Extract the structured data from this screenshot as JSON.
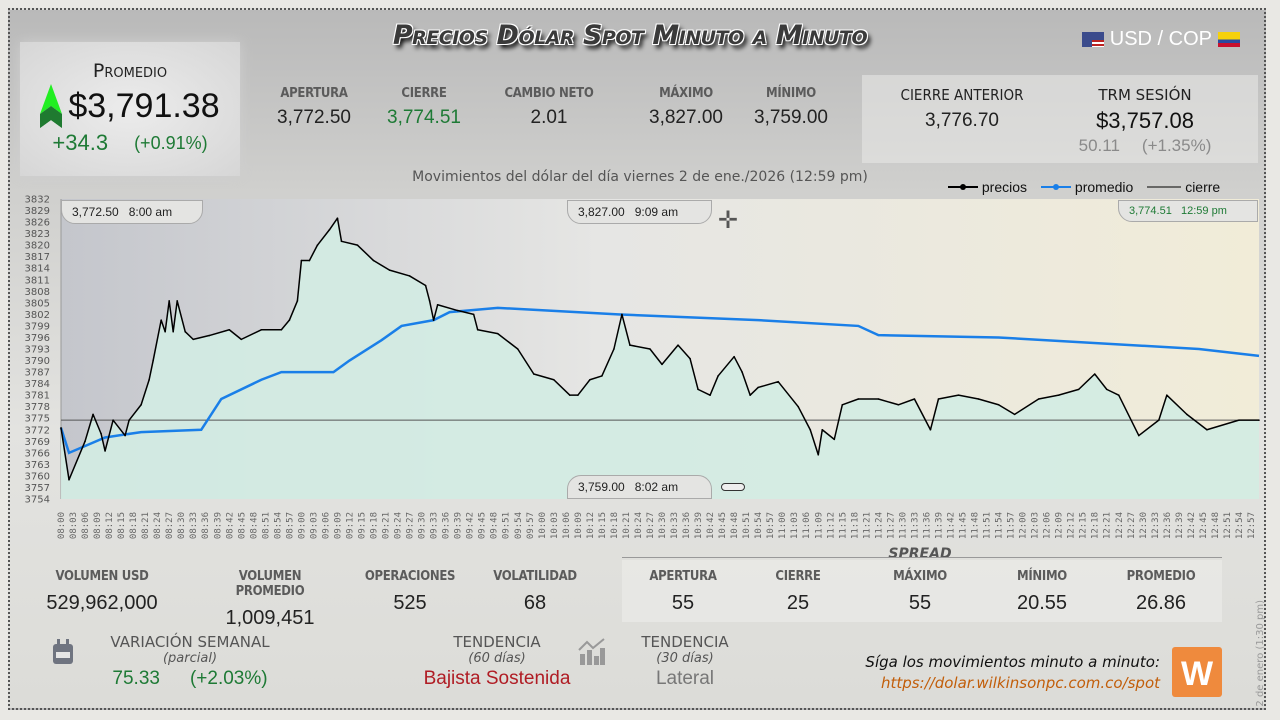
{
  "header": {
    "title": "Precios Dólar Spot Minuto a Minuto",
    "pair": "USD / COP",
    "flag_left": "us-flag-icon",
    "flag_right": "colombia-flag-icon"
  },
  "promedio": {
    "label": "Promedio",
    "value": "$3,791.38",
    "change": "+34.3",
    "change_pct": "(+0.91%)",
    "trend_icon": "arrow-up-icon"
  },
  "stats": [
    {
      "label": "APERTURA",
      "value": "3,772.50"
    },
    {
      "label": "CIERRE",
      "value": "3,774.51",
      "color": "#1e7a35"
    },
    {
      "label": "CAMBIO NETO",
      "value": "2.01"
    },
    {
      "label": "MÁXIMO",
      "value": "3,827.00"
    },
    {
      "label": "MÍNIMO",
      "value": "3,759.00"
    }
  ],
  "cierre_anterior": {
    "label": "CIERRE ANTERIOR",
    "value": "3,776.70"
  },
  "trm": {
    "label": "TRM SESIÓN",
    "value": "$3,757.08",
    "change": "50.11",
    "change_pct": "(+1.35%)"
  },
  "chart_data": {
    "type": "line",
    "title": "Movimientos del dólar del día viernes 2 de ene./2026 (12:59 pm)",
    "ylim": [
      3754,
      3832
    ],
    "xlim": [
      "08:00",
      "12:59"
    ],
    "grid": false,
    "legend": "top-right",
    "yticks": [
      3832,
      3829,
      3826,
      3823,
      3820,
      3817,
      3814,
      3811,
      3808,
      3805,
      3802,
      3799,
      3796,
      3793,
      3790,
      3787,
      3784,
      3781,
      3778,
      3775,
      3772,
      3769,
      3766,
      3763,
      3760,
      3757,
      3754
    ],
    "xticks": [
      "08:00",
      "08:03",
      "08:06",
      "08:09",
      "08:12",
      "08:15",
      "08:18",
      "08:21",
      "08:24",
      "08:27",
      "08:30",
      "08:33",
      "08:36",
      "08:39",
      "08:42",
      "08:45",
      "08:48",
      "08:51",
      "08:54",
      "08:57",
      "09:00",
      "09:03",
      "09:06",
      "09:09",
      "09:12",
      "09:15",
      "09:18",
      "09:21",
      "09:24",
      "09:27",
      "09:30",
      "09:33",
      "09:36",
      "09:39",
      "09:42",
      "09:45",
      "09:48",
      "09:51",
      "09:54",
      "09:57",
      "10:00",
      "10:03",
      "10:06",
      "10:09",
      "10:12",
      "10:15",
      "10:18",
      "10:21",
      "10:24",
      "10:27",
      "10:30",
      "10:33",
      "10:36",
      "10:39",
      "10:42",
      "10:45",
      "10:48",
      "10:51",
      "10:54",
      "10:57",
      "11:00",
      "11:03",
      "11:06",
      "11:09",
      "11:12",
      "11:15",
      "11:18",
      "11:21",
      "11:24",
      "11:27",
      "11:30",
      "11:33",
      "11:36",
      "11:39",
      "11:42",
      "11:45",
      "11:48",
      "11:51",
      "11:54",
      "11:57",
      "12:00",
      "12:03",
      "12:06",
      "12:09",
      "12:12",
      "12:15",
      "12:18",
      "12:21",
      "12:24",
      "12:27",
      "12:30",
      "12:33",
      "12:36",
      "12:39",
      "12:42",
      "12:45",
      "12:48",
      "12:51",
      "12:54",
      "12:57"
    ],
    "series": [
      {
        "name": "precios",
        "color": "#000000",
        "points": [
          [
            "08:00",
            3772.5
          ],
          [
            "08:02",
            3759
          ],
          [
            "08:06",
            3769
          ],
          [
            "08:08",
            3776
          ],
          [
            "08:10",
            3771
          ],
          [
            "08:11",
            3766.5
          ],
          [
            "08:13",
            3774.5
          ],
          [
            "08:16",
            3770.5
          ],
          [
            "08:17",
            3774.5
          ],
          [
            "08:20",
            3778.5
          ],
          [
            "08:22",
            3785
          ],
          [
            "08:23",
            3790
          ],
          [
            "08:25",
            3800.5
          ],
          [
            "08:26",
            3797.5
          ],
          [
            "08:27",
            3805.5
          ],
          [
            "08:28",
            3797.5
          ],
          [
            "08:29",
            3805.5
          ],
          [
            "08:31",
            3797.5
          ],
          [
            "08:33",
            3795.5
          ],
          [
            "08:37",
            3796.5
          ],
          [
            "08:42",
            3798
          ],
          [
            "08:45",
            3795.5
          ],
          [
            "08:50",
            3798
          ],
          [
            "08:55",
            3798
          ],
          [
            "08:57",
            3800.5
          ],
          [
            "08:59",
            3805.5
          ],
          [
            "09:00",
            3816
          ],
          [
            "09:02",
            3816
          ],
          [
            "09:04",
            3820
          ],
          [
            "09:07",
            3824
          ],
          [
            "09:09",
            3827
          ],
          [
            "09:10",
            3821
          ],
          [
            "09:14",
            3820
          ],
          [
            "09:18",
            3816
          ],
          [
            "09:22",
            3813.5
          ],
          [
            "09:27",
            3812
          ],
          [
            "09:31",
            3809.5
          ],
          [
            "09:32",
            3805.5
          ],
          [
            "09:33",
            3800.5
          ],
          [
            "09:34",
            3804.5
          ],
          [
            "09:39",
            3803
          ],
          [
            "09:43",
            3802
          ],
          [
            "09:44",
            3798
          ],
          [
            "09:49",
            3797
          ],
          [
            "09:54",
            3793
          ],
          [
            "09:58",
            3786.5
          ],
          [
            "10:03",
            3785
          ],
          [
            "10:07",
            3781
          ],
          [
            "10:09",
            3781
          ],
          [
            "10:12",
            3785
          ],
          [
            "10:15",
            3786
          ],
          [
            "10:18",
            3793
          ],
          [
            "10:20",
            3802
          ],
          [
            "10:22",
            3794
          ],
          [
            "10:27",
            3793
          ],
          [
            "10:30",
            3789
          ],
          [
            "10:34",
            3794
          ],
          [
            "10:37",
            3790.5
          ],
          [
            "10:39",
            3782.5
          ],
          [
            "10:42",
            3781
          ],
          [
            "10:44",
            3786
          ],
          [
            "10:48",
            3791
          ],
          [
            "10:50",
            3787
          ],
          [
            "10:52",
            3781
          ],
          [
            "10:54",
            3783
          ],
          [
            "10:59",
            3784.5
          ],
          [
            "11:04",
            3778
          ],
          [
            "11:07",
            3772
          ],
          [
            "11:09",
            3765.5
          ],
          [
            "11:10",
            3772
          ],
          [
            "11:13",
            3769.5
          ],
          [
            "11:15",
            3778.5
          ],
          [
            "11:19",
            3780
          ],
          [
            "11:24",
            3780
          ],
          [
            "11:29",
            3778.5
          ],
          [
            "11:33",
            3780
          ],
          [
            "11:37",
            3772
          ],
          [
            "11:39",
            3780
          ],
          [
            "11:44",
            3781
          ],
          [
            "11:49",
            3780
          ],
          [
            "11:54",
            3778.5
          ],
          [
            "11:58",
            3776
          ],
          [
            "12:04",
            3780
          ],
          [
            "12:09",
            3781
          ],
          [
            "12:14",
            3782.5
          ],
          [
            "12:18",
            3786.5
          ],
          [
            "12:21",
            3782.5
          ],
          [
            "12:24",
            3781
          ],
          [
            "12:29",
            3770.5
          ],
          [
            "12:34",
            3774.5
          ],
          [
            "12:36",
            3781
          ],
          [
            "12:41",
            3776
          ],
          [
            "12:46",
            3772
          ],
          [
            "12:54",
            3774.5
          ],
          [
            "12:59",
            3774.51
          ]
        ]
      },
      {
        "name": "promedio",
        "color": "#1a7fe8",
        "points": [
          [
            "08:00",
            3772.5
          ],
          [
            "08:02",
            3766
          ],
          [
            "08:11",
            3770
          ],
          [
            "08:20",
            3771.4
          ],
          [
            "08:35",
            3772
          ],
          [
            "08:40",
            3780
          ],
          [
            "08:50",
            3785
          ],
          [
            "08:55",
            3787
          ],
          [
            "09:08",
            3787
          ],
          [
            "09:12",
            3790
          ],
          [
            "09:20",
            3795.3
          ],
          [
            "09:25",
            3799
          ],
          [
            "09:33",
            3800.5
          ],
          [
            "09:37",
            3802.6
          ],
          [
            "09:49",
            3803.7
          ],
          [
            "10:19",
            3802
          ],
          [
            "10:54",
            3800.5
          ],
          [
            "11:19",
            3799
          ],
          [
            "11:24",
            3796.6
          ],
          [
            "11:54",
            3796
          ],
          [
            "12:44",
            3793
          ],
          [
            "12:59",
            3791.2
          ]
        ]
      },
      {
        "name": "cierre",
        "color": "#555555",
        "value": 3774.51
      }
    ],
    "annotations": [
      {
        "text": "3,772.50   8:00 am"
      },
      {
        "text": "3,827.00   9:09 am"
      },
      {
        "text": "3,774.51   12:59 pm"
      },
      {
        "text": "3,759.00   8:02 am"
      }
    ]
  },
  "bottom": {
    "stats": [
      {
        "label": "VOLUMEN USD",
        "value": "529,962,000"
      },
      {
        "label": "VOLUMEN PROMEDIO",
        "value": "1,009,451"
      },
      {
        "label": "OPERACIONES",
        "value": "525"
      },
      {
        "label": "VOLATILIDAD",
        "value": "68"
      }
    ],
    "spread": {
      "title": "SPREAD",
      "items": [
        {
          "label": "APERTURA",
          "value": "55"
        },
        {
          "label": "CIERRE",
          "value": "25"
        },
        {
          "label": "MÁXIMO",
          "value": "55"
        },
        {
          "label": "MÍNIMO",
          "value": "20.55"
        },
        {
          "label": "PROMEDIO",
          "value": "26.86"
        }
      ]
    },
    "weekly": {
      "label": "VARIACIÓN SEMANAL",
      "sub": "(parcial)",
      "value": "75.33",
      "pct": "(+2.03%)",
      "icon": "calendar-icon"
    },
    "trend60": {
      "label": "TENDENCIA",
      "sub": "(60 días)",
      "value": "Bajista Sostenida",
      "color": "#b01c24",
      "icon": "chart-growth-icon"
    },
    "trend30": {
      "label": "TENDENCIA",
      "sub": "(30 días)",
      "value": "Lateral"
    },
    "follow": "Síga los movimientos minuto a minuto:",
    "url": "https://dolar.wilkinsonpc.com.co/spot",
    "logo": "W",
    "side_note": "2 de enero (1:30 pm)"
  }
}
